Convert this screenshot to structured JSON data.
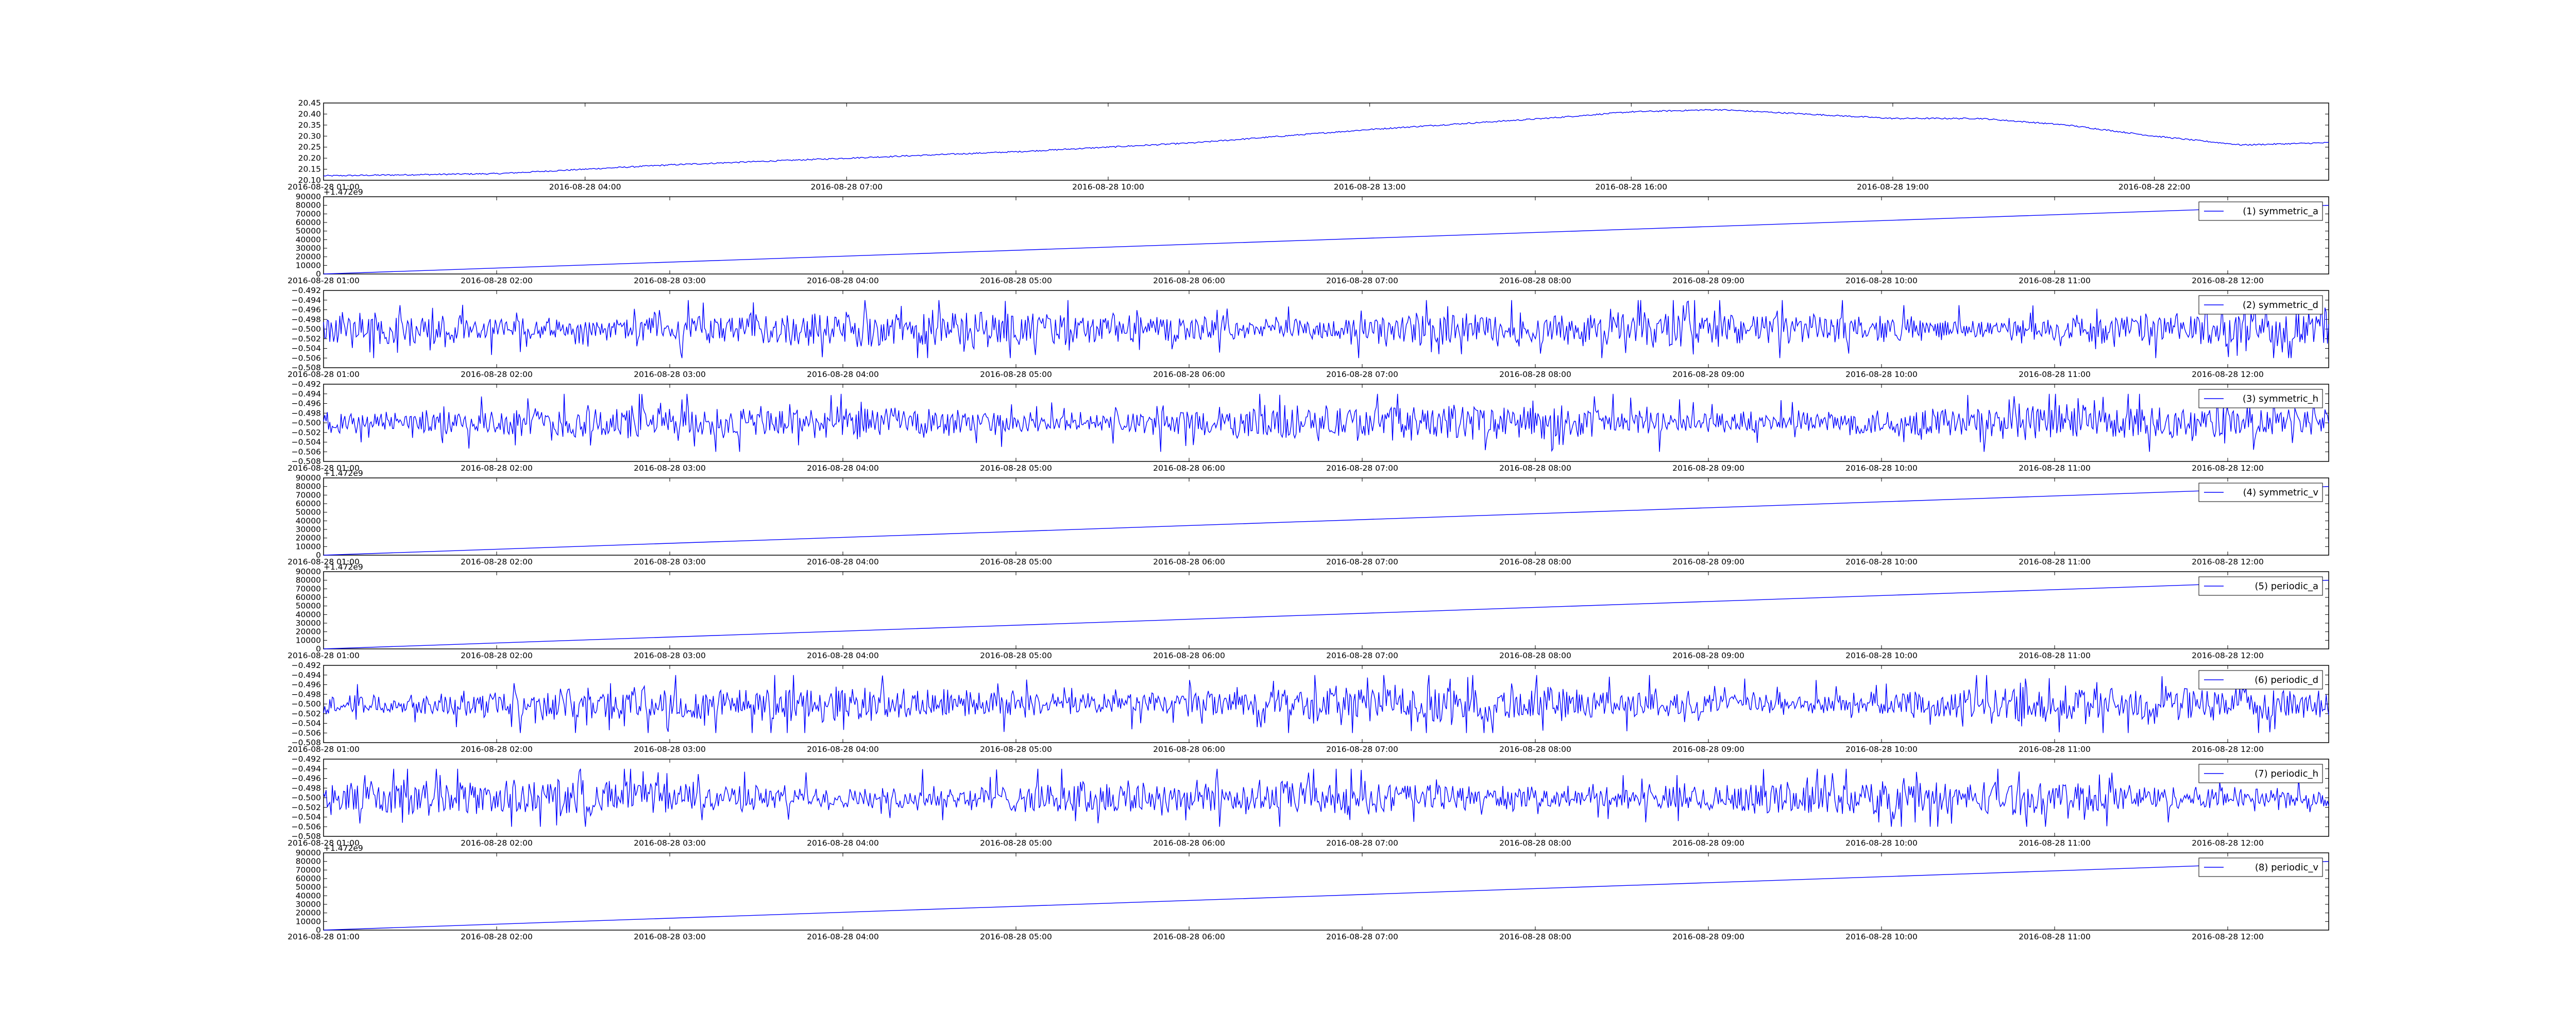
{
  "figure": {
    "background": "#ffffff",
    "line_color": "#0000ff"
  },
  "chart_data": [
    {
      "id": "temperature",
      "type": "line",
      "kind": "trend",
      "xlim": [
        "2016-08-28 01:00",
        "2016-08-29 00:00"
      ],
      "x_ticks": [
        "2016-08-28 01:00",
        "2016-08-28 04:00",
        "2016-08-28 07:00",
        "2016-08-28 10:00",
        "2016-08-28 13:00",
        "2016-08-28 16:00",
        "2016-08-28 19:00",
        "2016-08-28 22:00"
      ],
      "x_tick_labels": [
        "2016-08-28 01:00",
        "2016-08-28 04:00",
        "2016-08-28 07:00",
        "2016-08-28 10:00",
        "2016-08-28 13:00",
        "2016-08-28 16:00",
        "2016-08-28 19:00",
        "2016-08-28 22:00"
      ],
      "ylim": [
        20.1,
        20.45
      ],
      "y_ticks": [
        "20.10",
        "20.15",
        "20.20",
        "20.25",
        "20.30",
        "20.35",
        "20.40",
        "20.45"
      ],
      "x": [
        "2016-08-28 01:00",
        "2016-08-28 03:00",
        "2016-08-28 05:00",
        "2016-08-28 07:00",
        "2016-08-28 09:00",
        "2016-08-28 11:00",
        "2016-08-28 13:00",
        "2016-08-28 15:00",
        "2016-08-28 16:00",
        "2016-08-28 17:00",
        "2016-08-28 18:00",
        "2016-08-28 19:00",
        "2016-08-28 20:00",
        "2016-08-28 21:00",
        "2016-08-28 22:00",
        "2016-08-28 23:00",
        "2016-08-29 00:00"
      ],
      "values": [
        20.12,
        20.13,
        20.17,
        20.2,
        20.23,
        20.27,
        20.33,
        20.38,
        20.41,
        20.42,
        20.4,
        20.38,
        20.38,
        20.35,
        20.3,
        20.26,
        20.27
      ]
    },
    {
      "id": "symmetric_a",
      "type": "line",
      "kind": "ramp",
      "legend": "(1) symmetric_a",
      "offset_text": "+1.472e9",
      "xlim": [
        "2016-08-28 01:00",
        "2016-08-28 12:35"
      ],
      "x_tick_labels": [
        "2016-08-28 01:00",
        "2016-08-28 02:00",
        "2016-08-28 03:00",
        "2016-08-28 04:00",
        "2016-08-28 05:00",
        "2016-08-28 06:00",
        "2016-08-28 07:00",
        "2016-08-28 08:00",
        "2016-08-28 09:00",
        "2016-08-28 10:00",
        "2016-08-28 11:00",
        "2016-08-28 12:00"
      ],
      "ylim": [
        0,
        90000
      ],
      "y_ticks": [
        "0",
        "10000",
        "20000",
        "30000",
        "40000",
        "50000",
        "60000",
        "70000",
        "80000",
        "90000"
      ],
      "x": [
        "2016-08-28 01:00",
        "2016-08-28 12:35"
      ],
      "values": [
        0,
        80000
      ]
    },
    {
      "id": "symmetric_d",
      "type": "line",
      "kind": "noise",
      "legend": "(2) symmetric_d",
      "xlim": [
        "2016-08-28 01:00",
        "2016-08-28 12:35"
      ],
      "x_tick_labels": [
        "2016-08-28 01:00",
        "2016-08-28 02:00",
        "2016-08-28 03:00",
        "2016-08-28 04:00",
        "2016-08-28 05:00",
        "2016-08-28 06:00",
        "2016-08-28 07:00",
        "2016-08-28 08:00",
        "2016-08-28 09:00",
        "2016-08-28 10:00",
        "2016-08-28 11:00",
        "2016-08-28 12:00"
      ],
      "ylim": [
        -0.508,
        -0.492
      ],
      "y_ticks": [
        "−0.508",
        "−0.506",
        "−0.504",
        "−0.502",
        "−0.500",
        "−0.498",
        "−0.496",
        "−0.494",
        "−0.492"
      ],
      "baseline": -0.5,
      "range": [
        -0.506,
        -0.494
      ]
    },
    {
      "id": "symmetric_h",
      "type": "line",
      "kind": "noise",
      "legend": "(3) symmetric_h",
      "xlim": [
        "2016-08-28 01:00",
        "2016-08-28 12:35"
      ],
      "x_tick_labels": [
        "2016-08-28 01:00",
        "2016-08-28 02:00",
        "2016-08-28 03:00",
        "2016-08-28 04:00",
        "2016-08-28 05:00",
        "2016-08-28 06:00",
        "2016-08-28 07:00",
        "2016-08-28 08:00",
        "2016-08-28 09:00",
        "2016-08-28 10:00",
        "2016-08-28 11:00",
        "2016-08-28 12:00"
      ],
      "ylim": [
        -0.508,
        -0.492
      ],
      "y_ticks": [
        "−0.508",
        "−0.506",
        "−0.504",
        "−0.502",
        "−0.500",
        "−0.498",
        "−0.496",
        "−0.494",
        "−0.492"
      ],
      "baseline": -0.5,
      "range": [
        -0.506,
        -0.494
      ]
    },
    {
      "id": "symmetric_v",
      "type": "line",
      "kind": "ramp",
      "legend": "(4) symmetric_v",
      "offset_text": "+1.472e9",
      "xlim": [
        "2016-08-28 01:00",
        "2016-08-28 12:35"
      ],
      "x_tick_labels": [
        "2016-08-28 01:00",
        "2016-08-28 02:00",
        "2016-08-28 03:00",
        "2016-08-28 04:00",
        "2016-08-28 05:00",
        "2016-08-28 06:00",
        "2016-08-28 07:00",
        "2016-08-28 08:00",
        "2016-08-28 09:00",
        "2016-08-28 10:00",
        "2016-08-28 11:00",
        "2016-08-28 12:00"
      ],
      "ylim": [
        0,
        90000
      ],
      "y_ticks": [
        "0",
        "10000",
        "20000",
        "30000",
        "40000",
        "50000",
        "60000",
        "70000",
        "80000",
        "90000"
      ],
      "x": [
        "2016-08-28 01:00",
        "2016-08-28 12:35"
      ],
      "values": [
        0,
        80000
      ]
    },
    {
      "id": "periodic_a",
      "type": "line",
      "kind": "ramp",
      "legend": "(5) periodic_a",
      "offset_text": "+1.472e9",
      "xlim": [
        "2016-08-28 01:00",
        "2016-08-28 12:35"
      ],
      "x_tick_labels": [
        "2016-08-28 01:00",
        "2016-08-28 02:00",
        "2016-08-28 03:00",
        "2016-08-28 04:00",
        "2016-08-28 05:00",
        "2016-08-28 06:00",
        "2016-08-28 07:00",
        "2016-08-28 08:00",
        "2016-08-28 09:00",
        "2016-08-28 10:00",
        "2016-08-28 11:00",
        "2016-08-28 12:00"
      ],
      "ylim": [
        0,
        90000
      ],
      "y_ticks": [
        "0",
        "10000",
        "20000",
        "30000",
        "40000",
        "50000",
        "60000",
        "70000",
        "80000",
        "90000"
      ],
      "x": [
        "2016-08-28 01:00",
        "2016-08-28 12:35"
      ],
      "values": [
        0,
        80000
      ]
    },
    {
      "id": "periodic_d",
      "type": "line",
      "kind": "noise",
      "legend": "(6) periodic_d",
      "xlim": [
        "2016-08-28 01:00",
        "2016-08-28 12:35"
      ],
      "x_tick_labels": [
        "2016-08-28 01:00",
        "2016-08-28 02:00",
        "2016-08-28 03:00",
        "2016-08-28 04:00",
        "2016-08-28 05:00",
        "2016-08-28 06:00",
        "2016-08-28 07:00",
        "2016-08-28 08:00",
        "2016-08-28 09:00",
        "2016-08-28 10:00",
        "2016-08-28 11:00",
        "2016-08-28 12:00"
      ],
      "ylim": [
        -0.508,
        -0.492
      ],
      "y_ticks": [
        "−0.508",
        "−0.506",
        "−0.504",
        "−0.502",
        "−0.500",
        "−0.498",
        "−0.496",
        "−0.494",
        "−0.492"
      ],
      "baseline": -0.5,
      "range": [
        -0.506,
        -0.494
      ]
    },
    {
      "id": "periodic_h",
      "type": "line",
      "kind": "noise",
      "legend": "(7) periodic_h",
      "xlim": [
        "2016-08-28 01:00",
        "2016-08-28 12:35"
      ],
      "x_tick_labels": [
        "2016-08-28 01:00",
        "2016-08-28 02:00",
        "2016-08-28 03:00",
        "2016-08-28 04:00",
        "2016-08-28 05:00",
        "2016-08-28 06:00",
        "2016-08-28 07:00",
        "2016-08-28 08:00",
        "2016-08-28 09:00",
        "2016-08-28 10:00",
        "2016-08-28 11:00",
        "2016-08-28 12:00"
      ],
      "ylim": [
        -0.508,
        -0.492
      ],
      "y_ticks": [
        "−0.508",
        "−0.506",
        "−0.504",
        "−0.502",
        "−0.500",
        "−0.498",
        "−0.496",
        "−0.494",
        "−0.492"
      ],
      "baseline": -0.5,
      "range": [
        -0.506,
        -0.494
      ]
    },
    {
      "id": "periodic_v",
      "type": "line",
      "kind": "ramp",
      "legend": "(8) periodic_v",
      "offset_text": "+1.472e9",
      "xlim": [
        "2016-08-28 01:00",
        "2016-08-28 12:35"
      ],
      "x_tick_labels": [
        "2016-08-28 01:00",
        "2016-08-28 02:00",
        "2016-08-28 03:00",
        "2016-08-28 04:00",
        "2016-08-28 05:00",
        "2016-08-28 06:00",
        "2016-08-28 07:00",
        "2016-08-28 08:00",
        "2016-08-28 09:00",
        "2016-08-28 10:00",
        "2016-08-28 11:00",
        "2016-08-28 12:00"
      ],
      "ylim": [
        0,
        90000
      ],
      "y_ticks": [
        "0",
        "10000",
        "20000",
        "30000",
        "40000",
        "50000",
        "60000",
        "70000",
        "80000",
        "90000"
      ],
      "x": [
        "2016-08-28 01:00",
        "2016-08-28 12:35"
      ],
      "values": [
        0,
        80000
      ]
    }
  ]
}
